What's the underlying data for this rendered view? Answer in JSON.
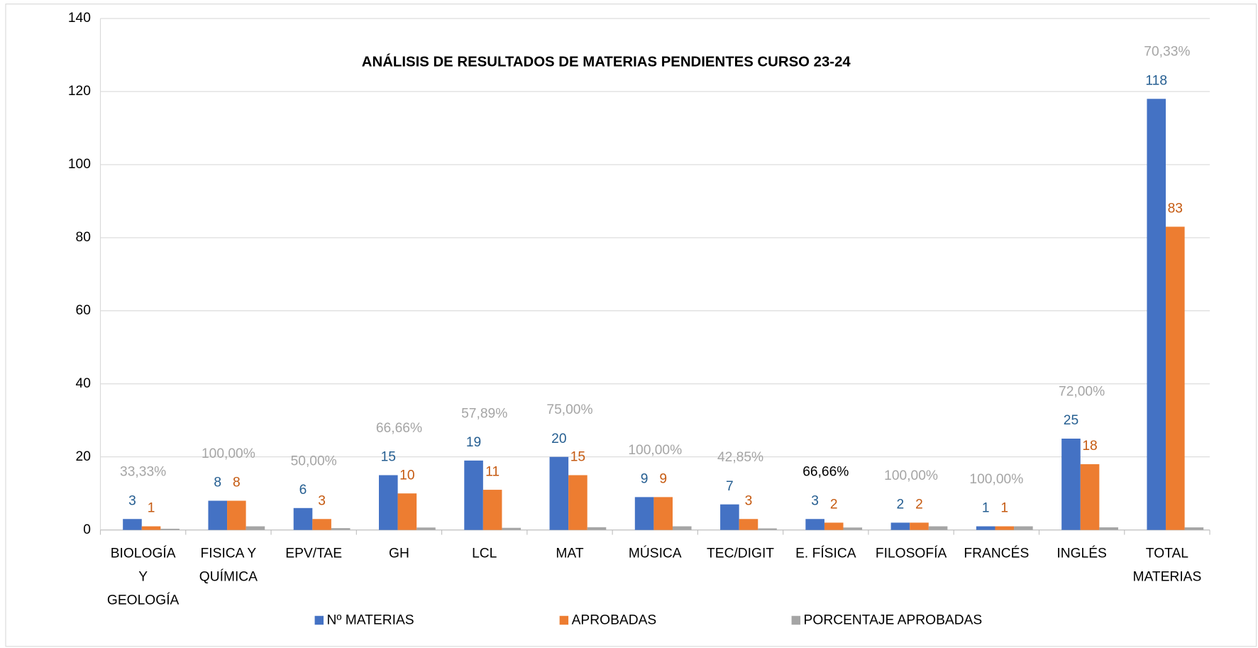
{
  "chart_data": {
    "type": "bar",
    "title": "ANÁLISIS DE RESULTADOS DE MATERIAS PENDIENTES CURSO  23-24",
    "categories": [
      "BIOLOGÍA Y GEOLOGÍA",
      "FISICA Y QUÍMICA",
      "EPV/TAE",
      "GH",
      "LCL",
      "MAT",
      "MÚSICA",
      "TEC/DIGIT",
      "E. FÍSICA",
      "FILOSOFÍA",
      "FRANCÉS",
      "INGLÉS",
      "TOTAL MATERIAS"
    ],
    "series": [
      {
        "name": "Nº MATERIAS",
        "color": "#4472c4",
        "label_color": "#255e91",
        "values": [
          3,
          8,
          6,
          15,
          19,
          20,
          9,
          7,
          3,
          2,
          1,
          25,
          118
        ]
      },
      {
        "name": "APROBADAS",
        "color": "#ed7d31",
        "label_color": "#c55a11",
        "values": [
          1,
          8,
          3,
          10,
          11,
          15,
          9,
          3,
          2,
          2,
          1,
          18,
          83
        ]
      },
      {
        "name": "PORCENTAJE APROBADAS",
        "color": "#a5a5a5",
        "values": [
          0.3333,
          1,
          0.5,
          0.6666,
          0.5789,
          0.75,
          1,
          0.4285,
          0.6666,
          1,
          1,
          0.72,
          0.7033
        ],
        "value_labels": [
          "33,33%",
          "100,00%",
          "50,00%",
          "66,66%",
          "57,89%",
          "75,00%",
          "100,00%",
          "42,85%",
          "66,66%",
          "100,00%",
          "100,00%",
          "72,00%",
          "70,33%"
        ],
        "label_colors": [
          "#a5a5a5",
          "#a5a5a5",
          "#a5a5a5",
          "#a5a5a5",
          "#a5a5a5",
          "#a5a5a5",
          "#a5a5a5",
          "#a5a5a5",
          "#000000",
          "#a5a5a5",
          "#a5a5a5",
          "#a5a5a5",
          "#a5a5a5"
        ]
      }
    ],
    "ylim": [
      0,
      140
    ],
    "yticks": [
      0,
      20,
      40,
      60,
      80,
      100,
      120,
      140
    ],
    "grid": true,
    "legend": "bottom"
  }
}
